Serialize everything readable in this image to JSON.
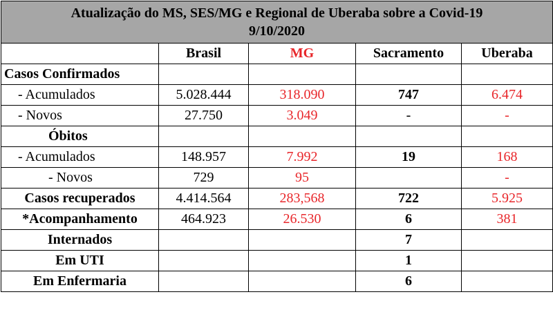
{
  "header": {
    "title": [
      "Atualização do MS, SES/MG e Regional de Uberaba sobre a Covid-19",
      "9/10/2020"
    ]
  },
  "table": {
    "columns": [
      "Brasil",
      "MG",
      "Sacramento",
      "Uberaba"
    ],
    "rows": [
      {
        "label": "Casos Confirmados",
        "cells": [
          null,
          null,
          null,
          null
        ]
      },
      {
        "label": "- Acumulados",
        "cells": [
          "5.028.444",
          "318.090",
          "747",
          "6.474"
        ]
      },
      {
        "label": "-  Novos",
        "cells": [
          "27.750",
          "3.049",
          "-",
          "-"
        ]
      },
      {
        "label": "Óbitos",
        "cells": [
          null,
          null,
          null,
          null
        ]
      },
      {
        "label": "- Acumulados",
        "cells": [
          "148.957",
          "7.992",
          "19",
          "168"
        ]
      },
      {
        "label": "- Novos",
        "cells": [
          "729",
          "95",
          null,
          "-"
        ]
      },
      {
        "label": "Casos recuperados",
        "cells": [
          "4.414.564",
          "283,568",
          "722",
          "5.925"
        ]
      },
      {
        "label": "*Acompanhamento",
        "cells": [
          "464.923",
          "26.530",
          "6",
          "381"
        ]
      },
      {
        "label": "Internados",
        "cells": [
          null,
          null,
          "7",
          null
        ]
      },
      {
        "label": "Em UTI",
        "cells": [
          null,
          null,
          "1",
          null
        ]
      },
      {
        "label": "Em Enfermaria",
        "cells": [
          null,
          null,
          "6",
          null
        ]
      }
    ]
  }
}
